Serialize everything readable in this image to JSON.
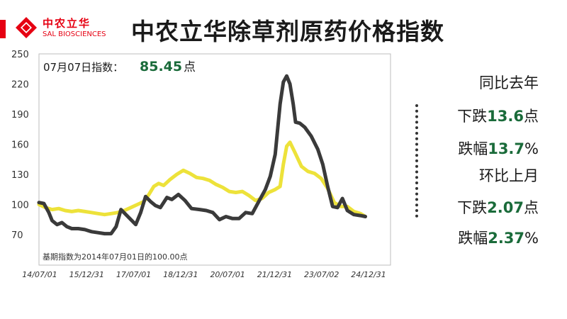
{
  "logo": {
    "cn": "中农立华",
    "en": "SAL BIOSCIENCES"
  },
  "title": "中农立华除草剂原药价格指数",
  "index_label": {
    "prefix": "07月07日指数：",
    "value": "85.45",
    "unit": "点"
  },
  "base_note": "基期指数为2014年07月01日的100.00点",
  "stats": [
    {
      "label": "同比去年",
      "value": "",
      "unit": ""
    },
    {
      "label": "下跌",
      "value": "13.6",
      "unit": "点"
    },
    {
      "label": "跌幅",
      "value": "13.7",
      "unit": "%"
    },
    {
      "label": "环比上月",
      "value": "",
      "unit": ""
    },
    {
      "label": "下跌",
      "value": "2.07",
      "unit": "点"
    },
    {
      "label": "跌幅",
      "value": "2.37",
      "unit": "%"
    }
  ],
  "colors": {
    "accent": "#e60012",
    "yellow": "#ede23a",
    "dark": "#3a3a3a",
    "green": "#1a6b3a"
  },
  "chart_data": {
    "type": "line",
    "x_ticks": [
      "14/07/01",
      "15/12/31",
      "17/07/01",
      "18/12/31",
      "20/07/01",
      "21/12/31",
      "23/07/02",
      "24/12/31"
    ],
    "y_ticks": [
      70,
      100,
      130,
      160,
      190,
      220,
      250
    ],
    "ylim": [
      70,
      250
    ],
    "xlim": [
      2014.5,
      2025.0
    ],
    "grid": false,
    "series": [
      {
        "color": "#ede23a",
        "points": [
          [
            2014.5,
            100
          ],
          [
            2014.7,
            97
          ],
          [
            2014.9,
            95
          ],
          [
            2015.1,
            96
          ],
          [
            2015.3,
            94
          ],
          [
            2015.5,
            93
          ],
          [
            2015.7,
            94
          ],
          [
            2015.9,
            93
          ],
          [
            2016.1,
            92
          ],
          [
            2016.3,
            91
          ],
          [
            2016.5,
            90
          ],
          [
            2016.7,
            91
          ],
          [
            2016.9,
            92
          ],
          [
            2017.1,
            94
          ],
          [
            2017.3,
            97
          ],
          [
            2017.5,
            100
          ],
          [
            2017.7,
            103
          ],
          [
            2017.85,
            110
          ],
          [
            2018.0,
            118
          ],
          [
            2018.15,
            121
          ],
          [
            2018.3,
            119
          ],
          [
            2018.5,
            125
          ],
          [
            2018.7,
            130
          ],
          [
            2018.9,
            134
          ],
          [
            2019.1,
            131
          ],
          [
            2019.3,
            127
          ],
          [
            2019.5,
            126
          ],
          [
            2019.7,
            124
          ],
          [
            2019.9,
            120
          ],
          [
            2020.1,
            117
          ],
          [
            2020.3,
            113
          ],
          [
            2020.5,
            112
          ],
          [
            2020.7,
            113
          ],
          [
            2020.9,
            109
          ],
          [
            2021.1,
            104
          ],
          [
            2021.3,
            106
          ],
          [
            2021.5,
            112
          ],
          [
            2021.7,
            115
          ],
          [
            2021.85,
            118
          ],
          [
            2021.95,
            140
          ],
          [
            2022.05,
            158
          ],
          [
            2022.15,
            162
          ],
          [
            2022.3,
            152
          ],
          [
            2022.5,
            138
          ],
          [
            2022.7,
            133
          ],
          [
            2022.9,
            131
          ],
          [
            2023.1,
            126
          ],
          [
            2023.3,
            116
          ],
          [
            2023.5,
            102
          ],
          [
            2023.7,
            98
          ],
          [
            2023.9,
            98
          ],
          [
            2024.1,
            93
          ],
          [
            2024.3,
            91
          ],
          [
            2024.45,
            88
          ]
        ]
      },
      {
        "color": "#3a3a3a",
        "points": [
          [
            2014.5,
            102
          ],
          [
            2014.65,
            101
          ],
          [
            2014.8,
            92
          ],
          [
            2014.9,
            84
          ],
          [
            2015.05,
            80
          ],
          [
            2015.2,
            82
          ],
          [
            2015.35,
            78
          ],
          [
            2015.5,
            76
          ],
          [
            2015.7,
            76
          ],
          [
            2015.9,
            75
          ],
          [
            2016.1,
            73
          ],
          [
            2016.3,
            72
          ],
          [
            2016.5,
            71
          ],
          [
            2016.7,
            71
          ],
          [
            2016.85,
            78
          ],
          [
            2017.0,
            95
          ],
          [
            2017.15,
            90
          ],
          [
            2017.3,
            85
          ],
          [
            2017.45,
            80
          ],
          [
            2017.6,
            92
          ],
          [
            2017.75,
            108
          ],
          [
            2017.9,
            103
          ],
          [
            2018.05,
            99
          ],
          [
            2018.2,
            97
          ],
          [
            2018.4,
            107
          ],
          [
            2018.55,
            105
          ],
          [
            2018.75,
            110
          ],
          [
            2018.95,
            104
          ],
          [
            2019.15,
            96
          ],
          [
            2019.4,
            95
          ],
          [
            2019.6,
            94
          ],
          [
            2019.8,
            92
          ],
          [
            2020.0,
            85
          ],
          [
            2020.2,
            88
          ],
          [
            2020.4,
            86
          ],
          [
            2020.6,
            86
          ],
          [
            2020.8,
            92
          ],
          [
            2021.0,
            91
          ],
          [
            2021.2,
            103
          ],
          [
            2021.4,
            115
          ],
          [
            2021.55,
            128
          ],
          [
            2021.7,
            150
          ],
          [
            2021.85,
            200
          ],
          [
            2021.95,
            222
          ],
          [
            2022.05,
            228
          ],
          [
            2022.15,
            220
          ],
          [
            2022.25,
            200
          ],
          [
            2022.32,
            182
          ],
          [
            2022.45,
            181
          ],
          [
            2022.6,
            177
          ],
          [
            2022.8,
            168
          ],
          [
            2023.0,
            155
          ],
          [
            2023.15,
            140
          ],
          [
            2023.3,
            118
          ],
          [
            2023.45,
            98
          ],
          [
            2023.6,
            97
          ],
          [
            2023.75,
            106
          ],
          [
            2023.9,
            94
          ],
          [
            2024.1,
            90
          ],
          [
            2024.3,
            89
          ],
          [
            2024.45,
            88
          ]
        ]
      }
    ]
  }
}
